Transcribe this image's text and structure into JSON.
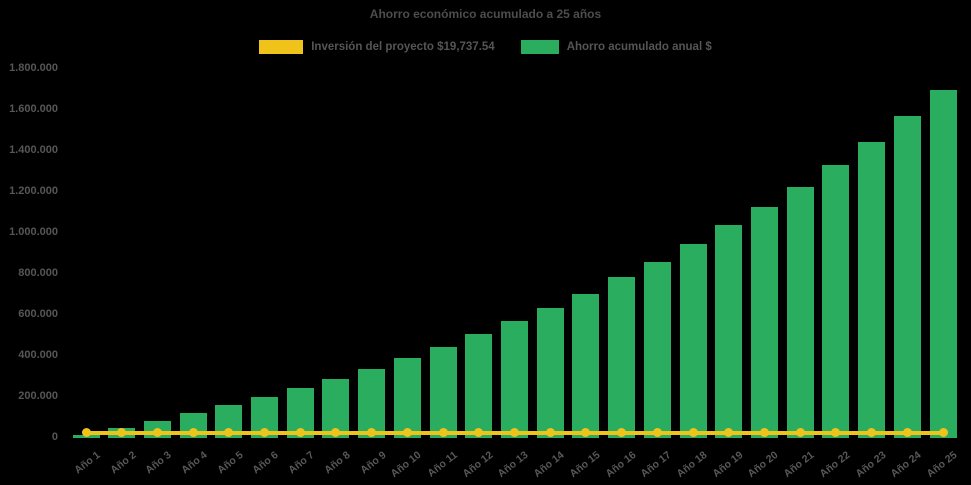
{
  "title": "Ahorro económico acumulado a 25 años",
  "colors": {
    "background": "#000000",
    "investment_yellow": "#EFC319",
    "savings_green": "#2BAD60",
    "text_gray": "#555555"
  },
  "legend": [
    {
      "label": "Inversión del proyecto $19,737.54",
      "color": "#EFC319"
    },
    {
      "label": "Ahorro acumulado anual $",
      "color": "#2BAD60"
    }
  ],
  "chart_data": {
    "type": "bar",
    "title": "Ahorro económico acumulado a 25 años",
    "xlabel": "",
    "ylabel": "",
    "ylim": [
      0,
      1800000
    ],
    "ytick_step": 200000,
    "ytick_labels": [
      "0",
      "200.000",
      "400.000",
      "600.000",
      "800.000",
      "1.000.000",
      "1.200.000",
      "1.400.000",
      "1.600.000",
      "1.800.000"
    ],
    "grid": false,
    "legend_position": "top",
    "categories": [
      "Año 1",
      "Año 2",
      "Año 3",
      "Año 4",
      "Año 5",
      "Año 6",
      "Año 7",
      "Año 8",
      "Año 9",
      "Año 10",
      "Año 11",
      "Año 12",
      "Año 13",
      "Año 14",
      "Año 15",
      "Año 16",
      "Año 17",
      "Año 18",
      "Año 19",
      "Año 20",
      "Año 21",
      "Año 22",
      "Año 23",
      "Año 24",
      "Año 25"
    ],
    "series": [
      {
        "name": "Inversión del proyecto $19,737.54",
        "type": "line",
        "color": "#EFC319",
        "constant_value": 19737.54,
        "values": [
          19737.54,
          19737.54,
          19737.54,
          19737.54,
          19737.54,
          19737.54,
          19737.54,
          19737.54,
          19737.54,
          19737.54,
          19737.54,
          19737.54,
          19737.54,
          19737.54,
          19737.54,
          19737.54,
          19737.54,
          19737.54,
          19737.54,
          19737.54,
          19737.54,
          19737.54,
          19737.54,
          19737.54,
          19737.54
        ]
      },
      {
        "name": "Ahorro acumulado anual $",
        "type": "bar",
        "color": "#2BAD60",
        "values": [
          12000,
          43000,
          80000,
          116000,
          155000,
          193000,
          238000,
          283000,
          333000,
          387000,
          440000,
          504000,
          565000,
          630000,
          700000,
          779000,
          852000,
          941000,
          1032000,
          1124000,
          1221000,
          1329000,
          1441000,
          1564000,
          1692000
        ]
      }
    ]
  }
}
